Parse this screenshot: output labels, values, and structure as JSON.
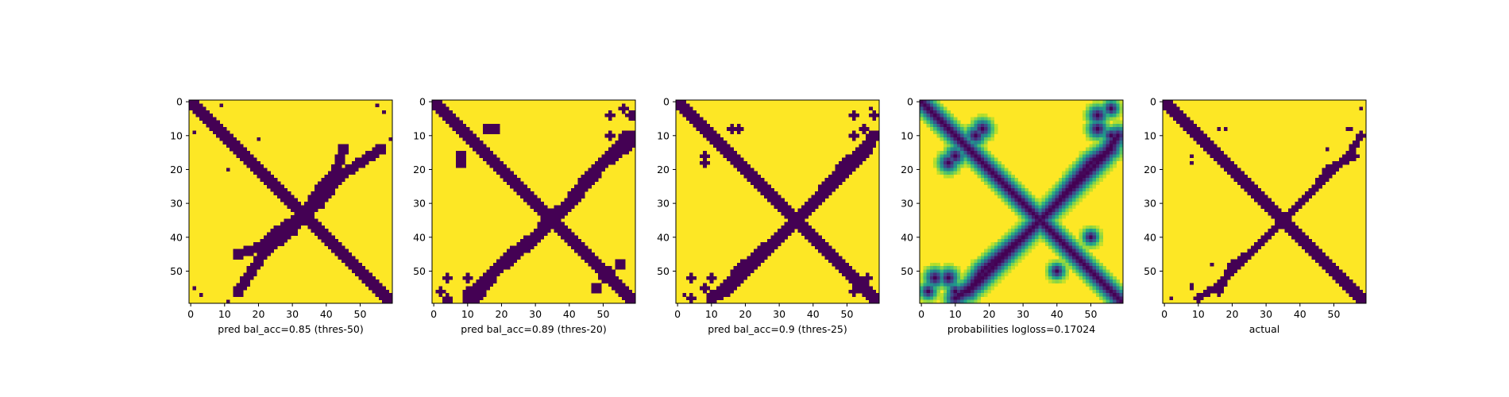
{
  "chart_data": [
    {
      "type": "heatmap",
      "title": "",
      "xlabel": "pred bal_acc=0.85 (thres-50)",
      "ylabel": "",
      "xlim": [
        0,
        59
      ],
      "ylim": [
        59,
        0
      ],
      "xticks": [
        0,
        10,
        20,
        30,
        40,
        50
      ],
      "yticks": [
        0,
        10,
        20,
        30,
        40,
        50
      ],
      "colormap": "viridis",
      "kind": "binary",
      "features": {
        "diagonal_width": 3,
        "antidiagonal": [
          [
            14,
            45
          ],
          [
            20,
            43
          ],
          [
            26,
            38
          ],
          [
            38,
            30
          ],
          [
            44,
            22
          ],
          [
            50,
            18
          ],
          [
            56,
            14
          ]
        ],
        "antidiagonal_width": 2,
        "blobs": [
          [
            16,
            18,
            1.2
          ],
          [
            20,
            11,
            1.3
          ],
          [
            57,
            3,
            1.0
          ],
          [
            59,
            11,
            0.8
          ],
          [
            1,
            55,
            1.0
          ],
          [
            9,
            1,
            0.7
          ]
        ]
      }
    },
    {
      "type": "heatmap",
      "title": "",
      "xlabel": "pred bal_acc=0.89 (thres-20)",
      "ylabel": "",
      "xlim": [
        0,
        59
      ],
      "ylim": [
        59,
        0
      ],
      "xticks": [
        0,
        10,
        20,
        30,
        40,
        50
      ],
      "yticks": [
        0,
        10,
        20,
        30,
        40,
        50
      ],
      "colormap": "viridis",
      "kind": "binary",
      "features": {
        "diagonal_width": 3.6,
        "antidiagonal": [
          [
            12,
            58
          ],
          [
            18,
            50
          ],
          [
            24,
            45
          ],
          [
            30,
            40
          ],
          [
            35,
            34
          ],
          [
            40,
            30
          ],
          [
            46,
            22
          ],
          [
            52,
            16
          ],
          [
            58,
            10
          ]
        ],
        "antidiagonal_width": 2.4,
        "blobs": [
          [
            8,
            16,
            2.2
          ],
          [
            18,
            8,
            2.0
          ],
          [
            52,
            10,
            1.8
          ],
          [
            60,
            4,
            2.0
          ],
          [
            55,
            48,
            2.2
          ],
          [
            50,
            52,
            1.8
          ],
          [
            4,
            52,
            1.5
          ],
          [
            4,
            58,
            1.8
          ],
          [
            10,
            56,
            1.5
          ],
          [
            56,
            2,
            1.5
          ]
        ]
      }
    },
    {
      "type": "heatmap",
      "title": "",
      "xlabel": "pred bal_acc=0.9 (thres-25)",
      "ylabel": "",
      "xlim": [
        0,
        59
      ],
      "ylim": [
        59,
        0
      ],
      "xticks": [
        0,
        10,
        20,
        30,
        40,
        50
      ],
      "yticks": [
        0,
        10,
        20,
        30,
        40,
        50
      ],
      "colormap": "viridis",
      "kind": "binary",
      "features": {
        "diagonal_width": 3.3,
        "antidiagonal": [
          [
            14,
            56
          ],
          [
            18,
            50
          ],
          [
            24,
            45
          ],
          [
            30,
            40
          ],
          [
            36,
            34
          ],
          [
            42,
            28
          ],
          [
            48,
            22
          ],
          [
            54,
            16
          ],
          [
            58,
            10
          ]
        ],
        "antidiagonal_width": 2.2,
        "blobs": [
          [
            8,
            16,
            1.8
          ],
          [
            18,
            8,
            1.8
          ],
          [
            52,
            10,
            1.6
          ],
          [
            58,
            4,
            1.6
          ],
          [
            56,
            52,
            1.6
          ],
          [
            4,
            52,
            1.5
          ],
          [
            8,
            55,
            1.4
          ],
          [
            2,
            57,
            1.2
          ]
        ]
      }
    },
    {
      "type": "heatmap",
      "title": "",
      "xlabel": "probabilities logloss=0.17024",
      "ylabel": "",
      "xlim": [
        0,
        59
      ],
      "ylim": [
        59,
        0
      ],
      "xticks": [
        0,
        10,
        20,
        30,
        40,
        50
      ],
      "yticks": [
        0,
        10,
        20,
        30,
        40,
        50
      ],
      "colormap": "viridis",
      "kind": "continuous",
      "features": {
        "diagonal_width": 4,
        "antidiagonal": [
          [
            14,
            56
          ],
          [
            18,
            50
          ],
          [
            24,
            45
          ],
          [
            30,
            40
          ],
          [
            36,
            34
          ],
          [
            42,
            28
          ],
          [
            48,
            22
          ],
          [
            54,
            16
          ],
          [
            58,
            10
          ]
        ],
        "antidiagonal_width": 3,
        "blobs": [
          [
            10,
            16,
            3.0
          ],
          [
            18,
            8,
            3.0
          ],
          [
            52,
            8,
            3.0
          ],
          [
            56,
            2,
            2.5
          ],
          [
            4,
            52,
            3.0
          ],
          [
            10,
            56,
            2.5
          ],
          [
            40,
            50,
            2.5
          ]
        ]
      }
    },
    {
      "type": "heatmap",
      "title": "",
      "xlabel": "actual",
      "ylabel": "",
      "xlim": [
        0,
        59
      ],
      "ylim": [
        59,
        0
      ],
      "xticks": [
        0,
        10,
        20,
        30,
        40,
        50
      ],
      "yticks": [
        0,
        10,
        20,
        30,
        40,
        50
      ],
      "colormap": "viridis",
      "kind": "binary",
      "features": {
        "diagonal_width": 2.8,
        "antidiagonal": [
          [
            16,
            56
          ],
          [
            20,
            48
          ],
          [
            26,
            44
          ],
          [
            32,
            38
          ],
          [
            36,
            34
          ],
          [
            42,
            28
          ],
          [
            48,
            22
          ],
          [
            54,
            16
          ],
          [
            58,
            10
          ]
        ],
        "antidiagonal_width": 1.4,
        "blobs": [
          [
            8,
            16,
            1.0
          ],
          [
            18,
            8,
            1.2
          ],
          [
            54,
            8,
            1.0
          ],
          [
            60,
            2,
            1.0
          ],
          [
            8,
            55,
            1.0
          ],
          [
            2,
            58,
            1.0
          ],
          [
            14,
            48,
            1.0
          ]
        ]
      }
    }
  ]
}
